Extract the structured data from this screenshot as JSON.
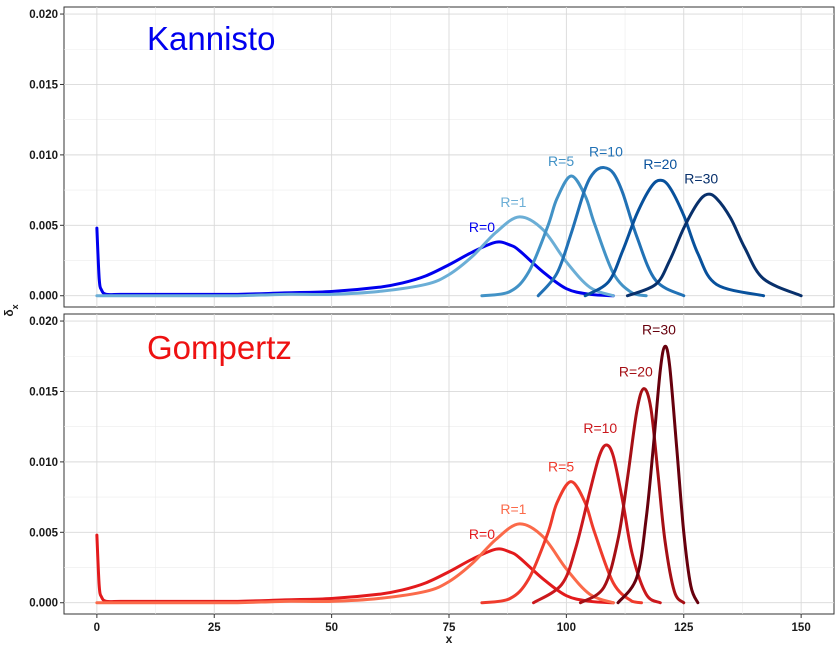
{
  "chart_data": {
    "type": "line",
    "xlabel": "x",
    "ylabel": "δ_x",
    "xlim": [
      -7,
      157
    ],
    "x_ticks": [
      0,
      25,
      50,
      75,
      100,
      125,
      150
    ],
    "x_tick_labels": [
      "0",
      "25",
      "50",
      "75",
      "100",
      "125",
      "150"
    ],
    "ylim": [
      -0.0008,
      0.0205
    ],
    "y_ticks": [
      0,
      0.005,
      0.01,
      0.015,
      0.02
    ],
    "y_tick_labels": [
      "0.000",
      "0.005",
      "0.010",
      "0.015",
      "0.020"
    ],
    "grid": true,
    "panels": [
      {
        "title": "Kannisto",
        "title_color": "#0000ee",
        "series": [
          {
            "name": "R=0",
            "color": "#0000ee",
            "x": [
              0,
              0.5,
              1,
              2,
              5,
              10,
              20,
              30,
              40,
              50,
              60,
              65,
              70,
              75,
              80,
              85,
              88,
              90,
              95,
              100,
              105,
              110
            ],
            "y": [
              0.0048,
              0.0012,
              0.0004,
              0.0001,
              0.0001,
              0.0001,
              0.0001,
              0.0001,
              0.0002,
              0.0003,
              0.0006,
              0.0009,
              0.0014,
              0.0022,
              0.0031,
              0.0038,
              0.0036,
              0.0032,
              0.0017,
              0.0005,
              0.0001,
              0.0
            ]
          },
          {
            "name": "R=1",
            "color": "#6baed6",
            "x": [
              0,
              10,
              20,
              30,
              40,
              50,
              60,
              70,
              75,
              80,
              85,
              90,
              95,
              100,
              105,
              110
            ],
            "y": [
              0.0,
              0.0,
              0.0,
              0.0,
              0.0001,
              0.0001,
              0.0003,
              0.0008,
              0.0015,
              0.0028,
              0.0045,
              0.0056,
              0.0047,
              0.0024,
              0.0006,
              0.0
            ]
          },
          {
            "name": "R=5",
            "color": "#4292c6",
            "x": [
              82,
              88,
              92,
              96,
              98,
              101,
              104,
              106,
              110,
              114,
              117
            ],
            "y": [
              0.0,
              0.0003,
              0.0017,
              0.0049,
              0.0069,
              0.0085,
              0.0071,
              0.0051,
              0.0016,
              0.0002,
              0.0
            ]
          },
          {
            "name": "R=10",
            "color": "#2171b5",
            "x": [
              94,
              98,
              101,
              104,
              106,
              108,
              110,
              112,
              115,
              119,
              125
            ],
            "y": [
              0.0,
              0.0016,
              0.0044,
              0.0076,
              0.0088,
              0.0091,
              0.0087,
              0.0073,
              0.0042,
              0.0011,
              0.0
            ]
          },
          {
            "name": "R=20",
            "color": "#08519c",
            "x": [
              104,
              109,
              112,
              115,
              118,
              120,
              122,
              125,
              128,
              132,
              142
            ],
            "y": [
              0.0,
              0.001,
              0.0032,
              0.0058,
              0.0077,
              0.0082,
              0.0077,
              0.0057,
              0.003,
              0.0008,
              0.0
            ]
          },
          {
            "name": "R=30",
            "color": "#08306b",
            "x": [
              113,
              119,
              122,
              125,
              128,
              130,
              132,
              135,
              138,
              142,
              150
            ],
            "y": [
              0.0,
              0.0008,
              0.0025,
              0.0048,
              0.0066,
              0.0072,
              0.0069,
              0.0055,
              0.0034,
              0.0012,
              0.0
            ]
          }
        ]
      },
      {
        "title": "Gompertz",
        "title_color": "#ee1111",
        "series": [
          {
            "name": "R=0",
            "color": "#e31a1c",
            "x": [
              0,
              0.5,
              1,
              2,
              5,
              10,
              20,
              30,
              40,
              50,
              60,
              65,
              70,
              75,
              80,
              85,
              88,
              90,
              95,
              100,
              105,
              110
            ],
            "y": [
              0.0048,
              0.0012,
              0.0004,
              0.0001,
              0.0001,
              0.0001,
              0.0001,
              0.0001,
              0.0002,
              0.0003,
              0.0006,
              0.0009,
              0.0014,
              0.0022,
              0.0031,
              0.0038,
              0.0036,
              0.0032,
              0.0017,
              0.0005,
              0.0001,
              0.0
            ]
          },
          {
            "name": "R=1",
            "color": "#fb6a4a",
            "x": [
              0,
              10,
              20,
              30,
              40,
              50,
              60,
              70,
              75,
              80,
              85,
              90,
              95,
              100,
              105,
              110
            ],
            "y": [
              0.0,
              0.0,
              0.0,
              0.0,
              0.0001,
              0.0001,
              0.0003,
              0.0008,
              0.0015,
              0.0028,
              0.0045,
              0.0056,
              0.0047,
              0.0024,
              0.0006,
              0.0
            ]
          },
          {
            "name": "R=5",
            "color": "#ef3b2c",
            "x": [
              82,
              88,
              92,
              96,
              98,
              101,
              104,
              106,
              110,
              114,
              116
            ],
            "y": [
              0.0,
              0.0003,
              0.0017,
              0.0049,
              0.0071,
              0.0086,
              0.0071,
              0.005,
              0.0014,
              0.0001,
              0.0
            ]
          },
          {
            "name": "R=10",
            "color": "#cb181d",
            "x": [
              93,
              99,
              102,
              105,
              107,
              108.5,
              110,
              112,
              114,
              117,
              120
            ],
            "y": [
              0.0,
              0.0013,
              0.0039,
              0.0079,
              0.0104,
              0.0112,
              0.0104,
              0.0072,
              0.0035,
              0.0006,
              0.0
            ]
          },
          {
            "name": "R=20",
            "color": "#a50f15",
            "x": [
              103,
              108,
              111,
              113,
              115,
              116.5,
              118,
              119.5,
              121,
              123,
              125
            ],
            "y": [
              0.0,
              0.0011,
              0.0045,
              0.0088,
              0.0136,
              0.0152,
              0.0138,
              0.0092,
              0.0044,
              0.0008,
              0.0
            ]
          },
          {
            "name": "R=30",
            "color": "#67000d",
            "x": [
              111,
              115,
              117,
              118.5,
              120,
              121,
              122,
              123.5,
              125,
              126.5,
              128
            ],
            "y": [
              0.0,
              0.0018,
              0.006,
              0.011,
              0.0165,
              0.0182,
              0.0168,
              0.011,
              0.005,
              0.0012,
              0.0
            ]
          }
        ]
      }
    ]
  }
}
